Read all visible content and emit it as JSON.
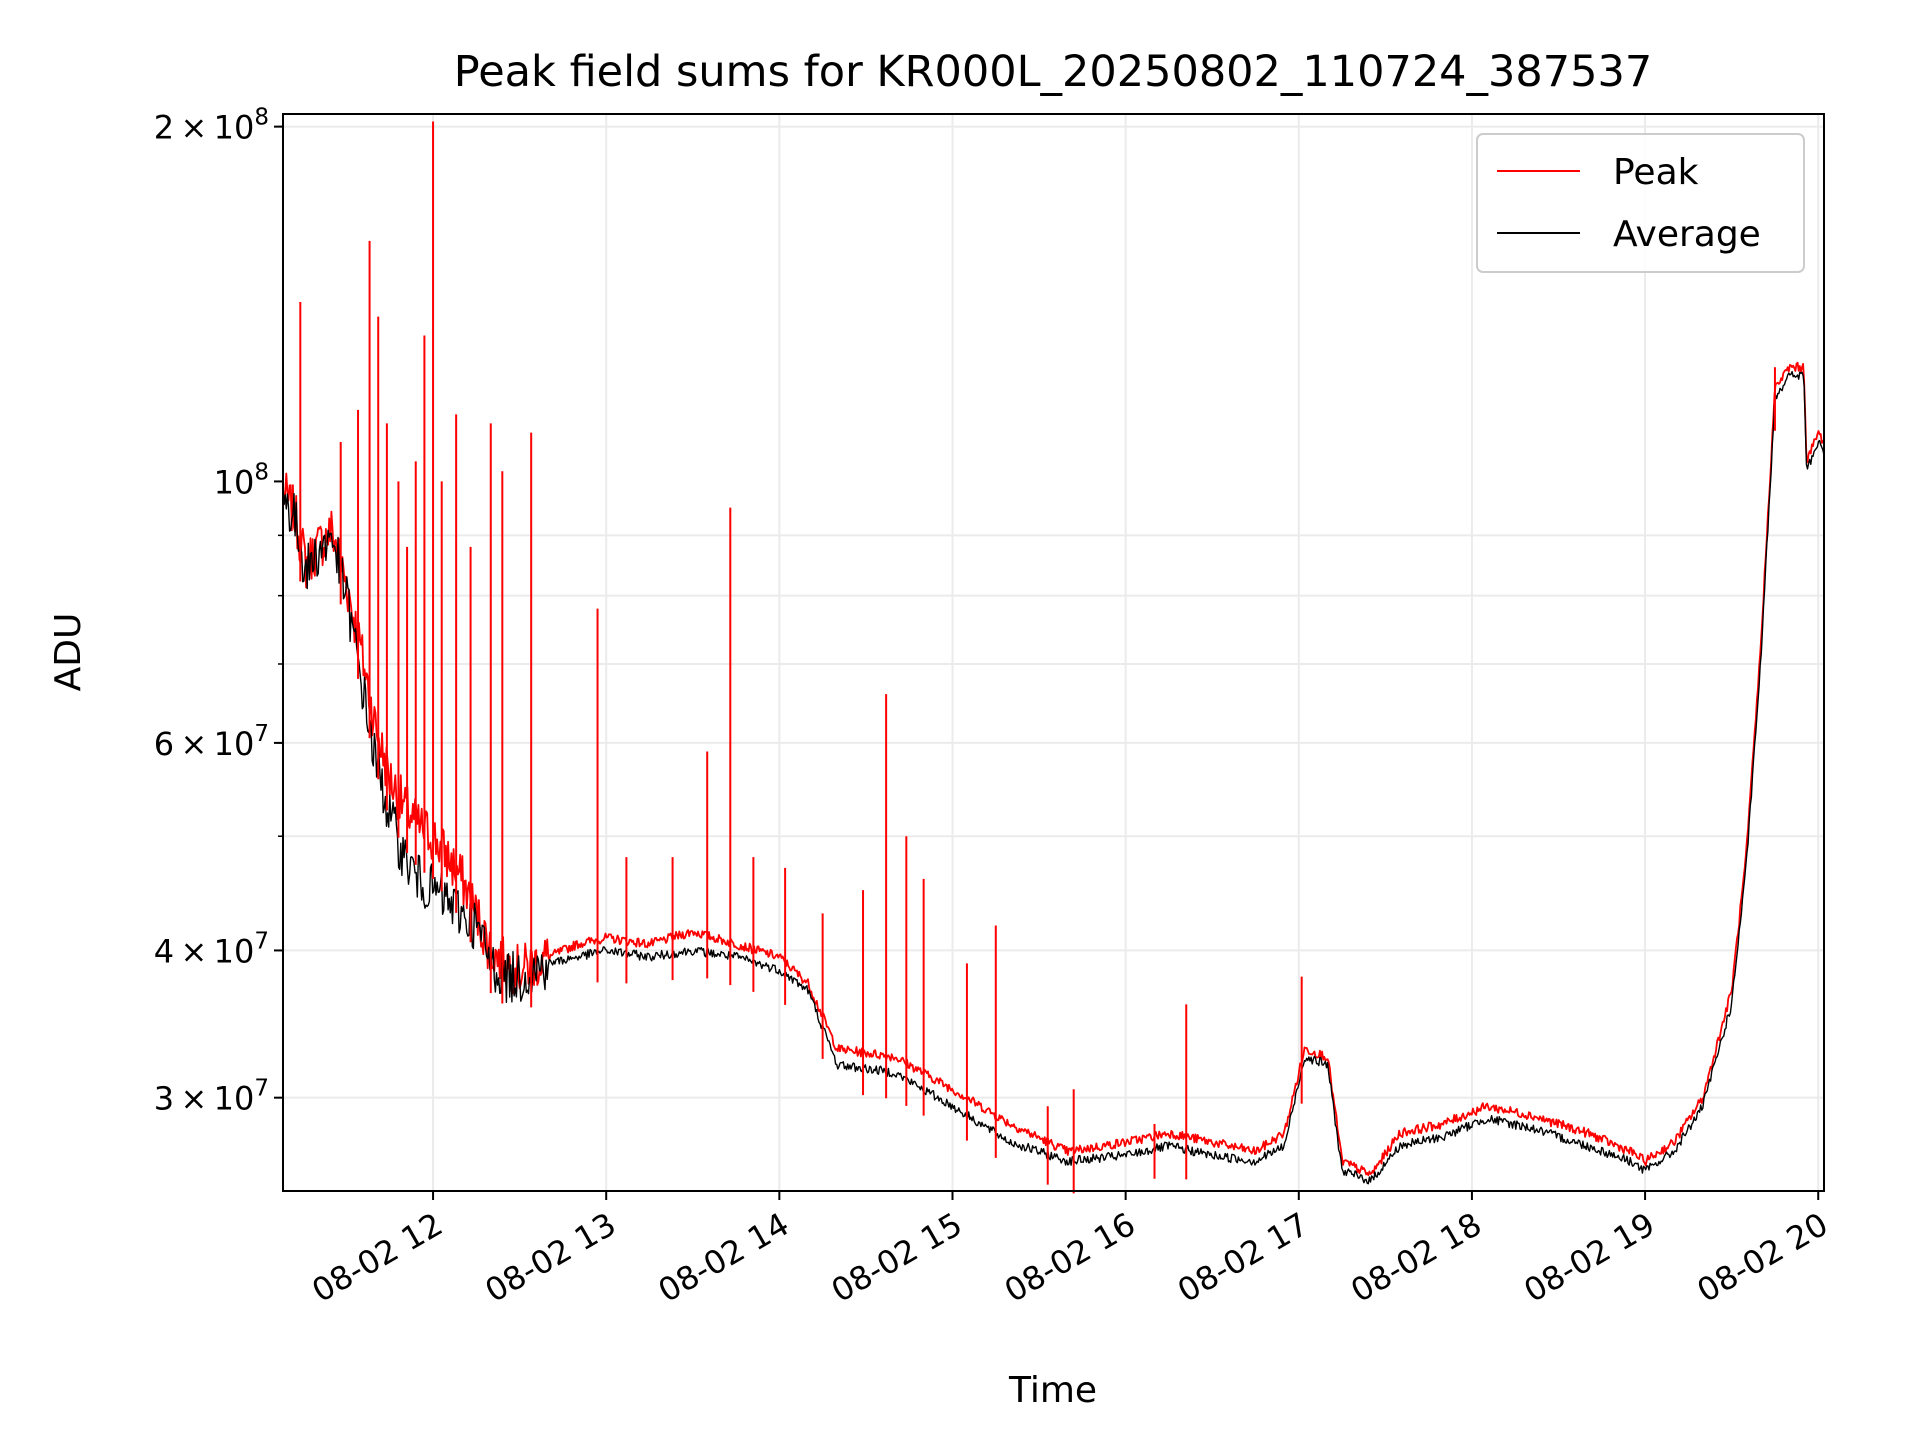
{
  "chart_data": {
    "type": "line",
    "title": "Peak field sums for KR000L_20250802_110724_387537",
    "xlabel": "Time",
    "ylabel": "ADU",
    "yscale": "log",
    "xlim": [
      "2025-08-02 11:08",
      "2025-08-02 20:02"
    ],
    "ylim": [
      25000000,
      205000000
    ],
    "grid": true,
    "legend_position": "top-right",
    "x_ticks": [
      {
        "value": "2025-08-02 12:00",
        "label": "08-02 12"
      },
      {
        "value": "2025-08-02 13:00",
        "label": "08-02 13"
      },
      {
        "value": "2025-08-02 14:00",
        "label": "08-02 14"
      },
      {
        "value": "2025-08-02 15:00",
        "label": "08-02 15"
      },
      {
        "value": "2025-08-02 16:00",
        "label": "08-02 16"
      },
      {
        "value": "2025-08-02 17:00",
        "label": "08-02 17"
      },
      {
        "value": "2025-08-02 18:00",
        "label": "08-02 18"
      },
      {
        "value": "2025-08-02 19:00",
        "label": "08-02 19"
      },
      {
        "value": "2025-08-02 20:00",
        "label": "08-02 20"
      }
    ],
    "y_ticks": [
      {
        "value": 30000000,
        "mantissa": "3",
        "exp": "7"
      },
      {
        "value": 40000000,
        "mantissa": "4",
        "exp": "7"
      },
      {
        "value": 60000000,
        "mantissa": "6",
        "exp": "7"
      },
      {
        "value": 100000000,
        "mantissa": "",
        "exp": "8"
      },
      {
        "value": 200000000,
        "mantissa": "2",
        "exp": "8"
      }
    ],
    "series": [
      {
        "name": "Peak",
        "color": "#ff0000",
        "x": [
          "2025-08-02 11:08",
          "2025-08-02 11:12",
          "2025-08-02 11:16",
          "2025-08-02 11:20",
          "2025-08-02 11:25",
          "2025-08-02 11:30",
          "2025-08-02 11:35",
          "2025-08-02 11:40",
          "2025-08-02 11:45",
          "2025-08-02 11:50",
          "2025-08-02 11:55",
          "2025-08-02 12:00",
          "2025-08-02 12:05",
          "2025-08-02 12:10",
          "2025-08-02 12:15",
          "2025-08-02 12:20",
          "2025-08-02 12:25",
          "2025-08-02 12:30",
          "2025-08-02 12:40",
          "2025-08-02 12:50",
          "2025-08-02 13:00",
          "2025-08-02 13:15",
          "2025-08-02 13:30",
          "2025-08-02 13:45",
          "2025-08-02 14:00",
          "2025-08-02 14:10",
          "2025-08-02 14:20",
          "2025-08-02 14:40",
          "2025-08-02 15:00",
          "2025-08-02 15:20",
          "2025-08-02 15:40",
          "2025-08-02 16:00",
          "2025-08-02 16:15",
          "2025-08-02 16:30",
          "2025-08-02 16:45",
          "2025-08-02 16:55",
          "2025-08-02 17:02",
          "2025-08-02 17:10",
          "2025-08-02 17:15",
          "2025-08-02 17:25",
          "2025-08-02 17:35",
          "2025-08-02 17:50",
          "2025-08-02 18:05",
          "2025-08-02 18:20",
          "2025-08-02 18:40",
          "2025-08-02 18:55",
          "2025-08-02 19:00",
          "2025-08-02 19:10",
          "2025-08-02 19:20",
          "2025-08-02 19:30",
          "2025-08-02 19:35",
          "2025-08-02 19:40",
          "2025-08-02 19:45",
          "2025-08-02 19:50",
          "2025-08-02 19:55",
          "2025-08-02 19:56",
          "2025-08-02 20:00",
          "2025-08-02 20:02"
        ],
        "y": [
          98000000,
          94000000,
          85000000,
          88000000,
          91000000,
          82000000,
          72000000,
          62000000,
          56000000,
          53000000,
          51000000,
          50000000,
          48000000,
          46000000,
          43000000,
          40000000,
          39000000,
          38500000,
          39500000,
          40500000,
          41000000,
          40500000,
          41500000,
          40500000,
          39500000,
          37500000,
          33000000,
          32500000,
          30500000,
          28500000,
          27000000,
          27500000,
          28000000,
          27500000,
          27000000,
          28000000,
          33000000,
          32500000,
          26500000,
          25800000,
          28000000,
          28500000,
          29500000,
          29000000,
          28000000,
          27000000,
          26500000,
          27500000,
          30000000,
          37000000,
          48000000,
          72000000,
          120000000,
          125000000,
          125000000,
          104000000,
          110000000,
          108000000
        ]
      },
      {
        "name": "Average",
        "color": "#000000",
        "x": [
          "2025-08-02 11:08",
          "2025-08-02 11:12",
          "2025-08-02 11:16",
          "2025-08-02 11:20",
          "2025-08-02 11:25",
          "2025-08-02 11:30",
          "2025-08-02 11:35",
          "2025-08-02 11:40",
          "2025-08-02 11:45",
          "2025-08-02 11:50",
          "2025-08-02 11:55",
          "2025-08-02 12:00",
          "2025-08-02 12:05",
          "2025-08-02 12:10",
          "2025-08-02 12:15",
          "2025-08-02 12:20",
          "2025-08-02 12:25",
          "2025-08-02 12:30",
          "2025-08-02 12:40",
          "2025-08-02 12:50",
          "2025-08-02 13:00",
          "2025-08-02 13:15",
          "2025-08-02 13:30",
          "2025-08-02 13:45",
          "2025-08-02 14:00",
          "2025-08-02 14:10",
          "2025-08-02 14:20",
          "2025-08-02 14:40",
          "2025-08-02 15:00",
          "2025-08-02 15:20",
          "2025-08-02 15:40",
          "2025-08-02 16:00",
          "2025-08-02 16:15",
          "2025-08-02 16:30",
          "2025-08-02 16:45",
          "2025-08-02 16:55",
          "2025-08-02 17:02",
          "2025-08-02 17:10",
          "2025-08-02 17:15",
          "2025-08-02 17:25",
          "2025-08-02 17:35",
          "2025-08-02 17:50",
          "2025-08-02 18:05",
          "2025-08-02 18:20",
          "2025-08-02 18:40",
          "2025-08-02 18:55",
          "2025-08-02 19:00",
          "2025-08-02 19:10",
          "2025-08-02 19:20",
          "2025-08-02 19:30",
          "2025-08-02 19:35",
          "2025-08-02 19:40",
          "2025-08-02 19:45",
          "2025-08-02 19:50",
          "2025-08-02 19:55",
          "2025-08-02 19:56",
          "2025-08-02 20:00",
          "2025-08-02 20:02"
        ],
        "y": [
          97000000,
          93000000,
          84000000,
          87000000,
          90000000,
          80000000,
          68000000,
          58000000,
          52000000,
          48000000,
          46000000,
          45000000,
          44000000,
          43000000,
          42000000,
          39000000,
          38000000,
          38000000,
          39000000,
          39500000,
          40000000,
          39500000,
          40000000,
          39500000,
          38500000,
          37000000,
          32000000,
          31500000,
          29500000,
          27500000,
          26500000,
          26800000,
          27300000,
          26800000,
          26500000,
          27300000,
          32500000,
          32000000,
          26000000,
          25500000,
          27300000,
          27800000,
          28800000,
          28300000,
          27300000,
          26500000,
          26000000,
          27000000,
          29500000,
          36000000,
          47000000,
          70000000,
          118000000,
          123000000,
          123000000,
          102000000,
          108000000,
          106000000
        ]
      }
    ],
    "spikes": [
      {
        "x": "2025-08-02 11:14",
        "y": 142000000
      },
      {
        "x": "2025-08-02 11:28",
        "y": 108000000
      },
      {
        "x": "2025-08-02 11:34",
        "y": 115000000
      },
      {
        "x": "2025-08-02 11:38",
        "y": 160000000
      },
      {
        "x": "2025-08-02 11:41",
        "y": 138000000
      },
      {
        "x": "2025-08-02 11:44",
        "y": 112000000
      },
      {
        "x": "2025-08-02 11:48",
        "y": 100000000
      },
      {
        "x": "2025-08-02 11:51",
        "y": 88000000
      },
      {
        "x": "2025-08-02 11:54",
        "y": 104000000
      },
      {
        "x": "2025-08-02 11:57",
        "y": 133000000
      },
      {
        "x": "2025-08-02 12:00",
        "y": 202000000
      },
      {
        "x": "2025-08-02 12:03",
        "y": 100000000
      },
      {
        "x": "2025-08-02 12:08",
        "y": 114000000
      },
      {
        "x": "2025-08-02 12:13",
        "y": 88000000
      },
      {
        "x": "2025-08-02 12:20",
        "y": 112000000
      },
      {
        "x": "2025-08-02 12:24",
        "y": 102000000
      },
      {
        "x": "2025-08-02 12:34",
        "y": 110000000
      },
      {
        "x": "2025-08-02 12:57",
        "y": 78000000
      },
      {
        "x": "2025-08-02 13:07",
        "y": 48000000
      },
      {
        "x": "2025-08-02 13:23",
        "y": 48000000
      },
      {
        "x": "2025-08-02 13:35",
        "y": 59000000
      },
      {
        "x": "2025-08-02 13:43",
        "y": 95000000
      },
      {
        "x": "2025-08-02 13:51",
        "y": 48000000
      },
      {
        "x": "2025-08-02 14:02",
        "y": 47000000
      },
      {
        "x": "2025-08-02 14:15",
        "y": 43000000
      },
      {
        "x": "2025-08-02 14:29",
        "y": 45000000
      },
      {
        "x": "2025-08-02 14:37",
        "y": 66000000
      },
      {
        "x": "2025-08-02 14:44",
        "y": 50000000
      },
      {
        "x": "2025-08-02 14:50",
        "y": 46000000
      },
      {
        "x": "2025-08-02 15:05",
        "y": 39000000
      },
      {
        "x": "2025-08-02 15:15",
        "y": 42000000
      },
      {
        "x": "2025-08-02 15:33",
        "y": 29500000
      },
      {
        "x": "2025-08-02 15:42",
        "y": 30500000
      },
      {
        "x": "2025-08-02 16:10",
        "y": 28500000
      },
      {
        "x": "2025-08-02 16:21",
        "y": 36000000
      },
      {
        "x": "2025-08-02 17:01",
        "y": 38000000
      },
      {
        "x": "2025-08-02 19:45",
        "y": 125000000
      }
    ]
  },
  "legend": {
    "peak_label": "Peak",
    "average_label": "Average"
  }
}
